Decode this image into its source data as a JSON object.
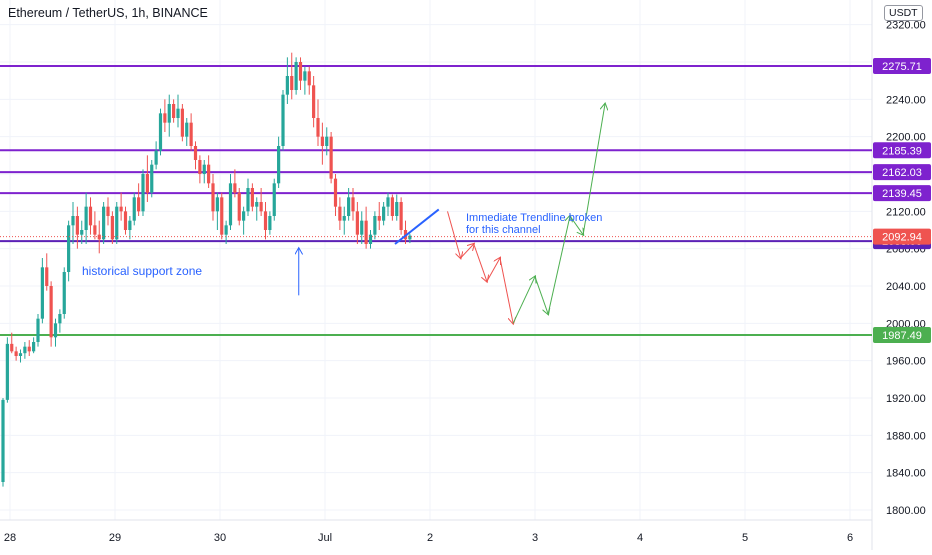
{
  "header": {
    "symbol_title": "Ethereum / TetherUS, 1h, BINANCE",
    "currency": "USDT"
  },
  "chart_data": {
    "type": "candlestick",
    "symbol": "Ethereum / TetherUS",
    "interval": "1h",
    "exchange": "BINANCE",
    "currency": "USDT",
    "ylim": [
      1780,
      2330
    ],
    "y_ticks": [
      1800,
      1840,
      1880,
      1920,
      1960,
      2000,
      2040,
      2080,
      2120,
      2160,
      2200,
      2240,
      2280,
      2320
    ],
    "y_tick_labels": [
      "1800.00",
      "1840.00",
      "1880.00",
      "1920.00",
      "1960.00",
      "2000.00",
      "2040.00",
      "2080.00",
      "2120.00",
      "2160.00",
      "2200.00",
      "2240.00",
      "2280.00",
      "2320.00"
    ],
    "x_ticks": [
      {
        "label": "28",
        "t": 0
      },
      {
        "label": "29",
        "t": 24
      },
      {
        "label": "30",
        "t": 48
      },
      {
        "label": "Jul",
        "t": 72
      },
      {
        "label": "2",
        "t": 96
      },
      {
        "label": "3",
        "t": 120
      },
      {
        "label": "4",
        "t": 144
      },
      {
        "label": "5",
        "t": 168
      },
      {
        "label": "6",
        "t": 192
      }
    ],
    "candles": [
      [
        1830,
        1920,
        1825,
        1918
      ],
      [
        1918,
        1985,
        1915,
        1978
      ],
      [
        1978,
        1990,
        1968,
        1970
      ],
      [
        1970,
        1975,
        1960,
        1965
      ],
      [
        1965,
        1972,
        1958,
        1968
      ],
      [
        1968,
        1980,
        1962,
        1975
      ],
      [
        1975,
        1982,
        1965,
        1970
      ],
      [
        1970,
        1985,
        1968,
        1980
      ],
      [
        1980,
        2010,
        1975,
        2005
      ],
      [
        2005,
        2070,
        2000,
        2060
      ],
      [
        2060,
        2075,
        2035,
        2040
      ],
      [
        2040,
        2045,
        1975,
        1985
      ],
      [
        1985,
        2005,
        1975,
        2000
      ],
      [
        2000,
        2015,
        1990,
        2010
      ],
      [
        2010,
        2060,
        2005,
        2055
      ],
      [
        2055,
        2110,
        2045,
        2105
      ],
      [
        2105,
        2130,
        2085,
        2115
      ],
      [
        2115,
        2125,
        2080,
        2095
      ],
      [
        2095,
        2110,
        2085,
        2100
      ],
      [
        2100,
        2140,
        2085,
        2125
      ],
      [
        2125,
        2135,
        2095,
        2105
      ],
      [
        2105,
        2120,
        2090,
        2095
      ],
      [
        2095,
        2110,
        2075,
        2090
      ],
      [
        2090,
        2130,
        2085,
        2125
      ],
      [
        2125,
        2135,
        2105,
        2115
      ],
      [
        2115,
        2120,
        2085,
        2090
      ],
      [
        2090,
        2130,
        2085,
        2125
      ],
      [
        2125,
        2140,
        2110,
        2120
      ],
      [
        2120,
        2125,
        2095,
        2100
      ],
      [
        2100,
        2115,
        2090,
        2110
      ],
      [
        2110,
        2140,
        2105,
        2135
      ],
      [
        2135,
        2150,
        2115,
        2120
      ],
      [
        2120,
        2165,
        2115,
        2160
      ],
      [
        2160,
        2180,
        2130,
        2140
      ],
      [
        2140,
        2175,
        2135,
        2170
      ],
      [
        2170,
        2195,
        2165,
        2185
      ],
      [
        2185,
        2230,
        2180,
        2225
      ],
      [
        2225,
        2240,
        2205,
        2215
      ],
      [
        2215,
        2245,
        2200,
        2235
      ],
      [
        2235,
        2240,
        2215,
        2220
      ],
      [
        2220,
        2245,
        2210,
        2230
      ],
      [
        2230,
        2235,
        2195,
        2200
      ],
      [
        2200,
        2220,
        2190,
        2215
      ],
      [
        2215,
        2225,
        2185,
        2190
      ],
      [
        2190,
        2195,
        2165,
        2175
      ],
      [
        2175,
        2180,
        2150,
        2160
      ],
      [
        2160,
        2175,
        2150,
        2170
      ],
      [
        2170,
        2180,
        2145,
        2150
      ],
      [
        2150,
        2160,
        2110,
        2120
      ],
      [
        2120,
        2140,
        2100,
        2135
      ],
      [
        2135,
        2140,
        2090,
        2095
      ],
      [
        2095,
        2110,
        2085,
        2105
      ],
      [
        2105,
        2160,
        2100,
        2150
      ],
      [
        2150,
        2165,
        2135,
        2140
      ],
      [
        2140,
        2145,
        2105,
        2110
      ],
      [
        2110,
        2125,
        2095,
        2120
      ],
      [
        2120,
        2155,
        2115,
        2145
      ],
      [
        2145,
        2150,
        2120,
        2125
      ],
      [
        2125,
        2135,
        2110,
        2130
      ],
      [
        2130,
        2145,
        2115,
        2120
      ],
      [
        2120,
        2130,
        2090,
        2100
      ],
      [
        2100,
        2120,
        2095,
        2115
      ],
      [
        2115,
        2155,
        2110,
        2150
      ],
      [
        2150,
        2200,
        2145,
        2190
      ],
      [
        2190,
        2250,
        2185,
        2245
      ],
      [
        2245,
        2285,
        2235,
        2265
      ],
      [
        2265,
        2290,
        2240,
        2250
      ],
      [
        2250,
        2285,
        2245,
        2280
      ],
      [
        2280,
        2285,
        2250,
        2260
      ],
      [
        2260,
        2275,
        2245,
        2270
      ],
      [
        2270,
        2275,
        2245,
        2255
      ],
      [
        2255,
        2265,
        2210,
        2220
      ],
      [
        2220,
        2240,
        2190,
        2200
      ],
      [
        2200,
        2215,
        2170,
        2190
      ],
      [
        2190,
        2210,
        2180,
        2200
      ],
      [
        2200,
        2205,
        2150,
        2155
      ],
      [
        2155,
        2160,
        2115,
        2125
      ],
      [
        2125,
        2135,
        2100,
        2110
      ],
      [
        2110,
        2125,
        2095,
        2115
      ],
      [
        2115,
        2145,
        2110,
        2135
      ],
      [
        2135,
        2145,
        2110,
        2120
      ],
      [
        2120,
        2130,
        2085,
        2095
      ],
      [
        2095,
        2120,
        2085,
        2110
      ],
      [
        2110,
        2125,
        2080,
        2085
      ],
      [
        2085,
        2100,
        2080,
        2095
      ],
      [
        2095,
        2120,
        2090,
        2115
      ],
      [
        2115,
        2130,
        2100,
        2110
      ],
      [
        2110,
        2130,
        2105,
        2125
      ],
      [
        2125,
        2140,
        2115,
        2135
      ],
      [
        2135,
        2138,
        2110,
        2115
      ],
      [
        2115,
        2138,
        2110,
        2130
      ],
      [
        2130,
        2135,
        2095,
        2100
      ],
      [
        2100,
        2110,
        2085,
        2090
      ],
      [
        2090,
        2096,
        2086,
        2094
      ]
    ],
    "horizontal_levels": [
      {
        "price": 2275.71,
        "label": "2275.71",
        "color": "#7e22ce"
      },
      {
        "price": 2185.39,
        "label": "2185.39",
        "color": "#7e22ce"
      },
      {
        "price": 2162.03,
        "label": "2162.03",
        "color": "#7e22ce"
      },
      {
        "price": 2139.45,
        "label": "2139.45",
        "color": "#7e22ce"
      },
      {
        "price": 2088.06,
        "label": "2088.06",
        "color": "#5b21b6"
      },
      {
        "price": 1987.49,
        "label": "1987.49",
        "color": "#4caf50"
      }
    ],
    "current_price": {
      "price": 2092.94,
      "label": "2092.94",
      "color": "#ef5350"
    },
    "annotations": {
      "historical_support_zone": "historical support zone",
      "trendline_note_line1": "Immediate Trendline broken",
      "trendline_note_line2": "for this channel"
    },
    "projection": {
      "red_path": [
        [
          100,
          2120
        ],
        [
          103,
          2070
        ],
        [
          106,
          2085
        ],
        [
          109,
          2045
        ],
        [
          112,
          2070
        ],
        [
          115,
          2000
        ]
      ],
      "green_path": [
        [
          115,
          2000
        ],
        [
          120,
          2050
        ],
        [
          123,
          2010
        ],
        [
          128,
          2115
        ],
        [
          131,
          2095
        ],
        [
          136,
          2235
        ]
      ]
    },
    "trendline": [
      [
        88,
        2085
      ],
      [
        98,
        2122
      ]
    ],
    "support_arrow": [
      [
        66,
        2030
      ],
      [
        66,
        2080
      ]
    ],
    "colors": {
      "up": "#26a69a",
      "down": "#ef5350",
      "grid": "#f0f3fa",
      "level": "#7e22ce",
      "support": "#4caf50",
      "annotation": "#2962ff",
      "projection_down": "#ef5350",
      "projection_up": "#4caf50"
    }
  }
}
